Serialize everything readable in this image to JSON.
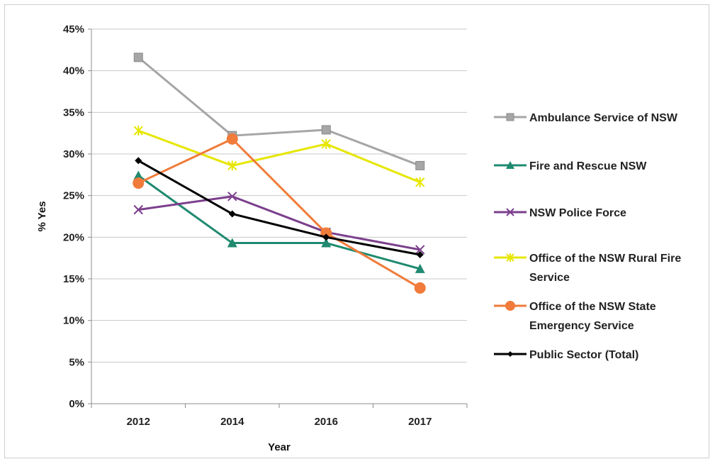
{
  "chart_data": {
    "type": "line",
    "xlabel": "Year",
    "ylabel": "% Yes",
    "categories": [
      "2012",
      "2014",
      "2016",
      "2017"
    ],
    "ylim": [
      0,
      45
    ],
    "ytick_step": 5,
    "ytick_format": "percent",
    "grid": true,
    "legend_position": "right",
    "series": [
      {
        "name": "Ambulance Service of NSW",
        "values": [
          41.6,
          32.2,
          32.9,
          28.6
        ],
        "color": "#a6a6a6",
        "marker": "square"
      },
      {
        "name": "Fire and Rescue NSW",
        "values": [
          27.4,
          19.3,
          19.3,
          16.2
        ],
        "color": "#1f8a70",
        "marker": "triangle"
      },
      {
        "name": "NSW Police Force",
        "values": [
          23.3,
          24.9,
          20.6,
          18.5
        ],
        "color": "#7b3f8c",
        "marker": "x"
      },
      {
        "name": "Office of the NSW Rural Fire Service",
        "values": [
          32.8,
          28.6,
          31.2,
          26.6
        ],
        "color": "#e6e600",
        "marker": "star"
      },
      {
        "name": "Office of the NSW State Emergency Service",
        "values": [
          26.5,
          31.8,
          20.5,
          13.9
        ],
        "color": "#f07b3a",
        "marker": "circle"
      },
      {
        "name": "Public Sector (Total)",
        "values": [
          29.2,
          22.8,
          20.0,
          17.9
        ],
        "color": "#000000",
        "marker": "diamond"
      }
    ]
  }
}
